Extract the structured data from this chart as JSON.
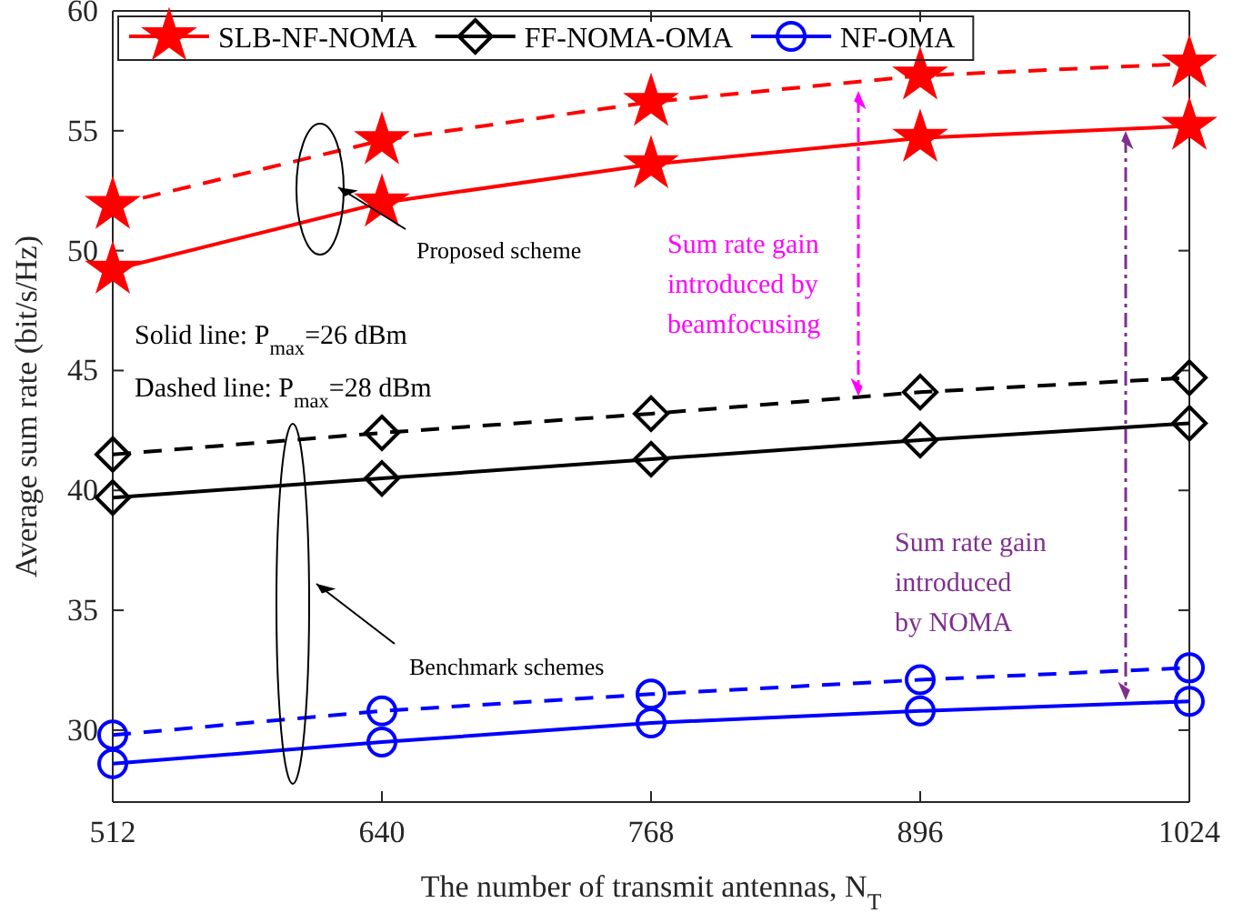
{
  "chart_data": {
    "type": "line",
    "xlabel": "The number of transmit antennas,  N$_{T}$",
    "ylabel": "Average sum rate (bit/s/Hz)",
    "x": [
      512,
      640,
      768,
      896,
      1024
    ],
    "xlim": [
      512,
      1024
    ],
    "xticks": [
      512,
      640,
      768,
      896,
      1024
    ],
    "ylim": [
      27,
      60
    ],
    "yticks": [
      30,
      35,
      40,
      45,
      50,
      55,
      60
    ],
    "grid": false,
    "legend": "top",
    "series": [
      {
        "name": "SLB-NF-NOMA",
        "color": "#ff0000",
        "marker": "star",
        "line_style": "solid",
        "values": [
          49.2,
          52.0,
          53.6,
          54.7,
          55.2
        ]
      },
      {
        "name": "FF-NOMA-OMA",
        "color": "#000000",
        "marker": "diamond",
        "line_style": "solid",
        "values": [
          39.7,
          40.5,
          41.3,
          42.1,
          42.8
        ]
      },
      {
        "name": "NF-OMA",
        "color": "#0000ff",
        "marker": "circle",
        "line_style": "solid",
        "values": [
          28.6,
          29.5,
          30.3,
          30.8,
          31.2
        ]
      },
      {
        "color": "#ff0000",
        "marker": "star",
        "line_style": "dashed",
        "values": [
          51.9,
          54.6,
          56.2,
          57.3,
          57.8
        ]
      },
      {
        "color": "#000000",
        "marker": "diamond",
        "line_style": "dashed",
        "values": [
          41.5,
          42.4,
          43.2,
          44.1,
          44.7
        ]
      },
      {
        "color": "#0000ff",
        "marker": "circle",
        "line_style": "dashed",
        "values": [
          29.8,
          30.8,
          31.5,
          32.1,
          32.6
        ]
      }
    ],
    "annotations": [
      "Proposed scheme",
      "Solid line:  P$_{max}$=26 dBm",
      "Dashed line:  P$_{max}$=28 dBm",
      "Benchmark schemes",
      "Sum rate gain\nintroduced by\nbeamfocusing",
      "Sum rate gain\nintroduced\nby NOMA"
    ]
  }
}
